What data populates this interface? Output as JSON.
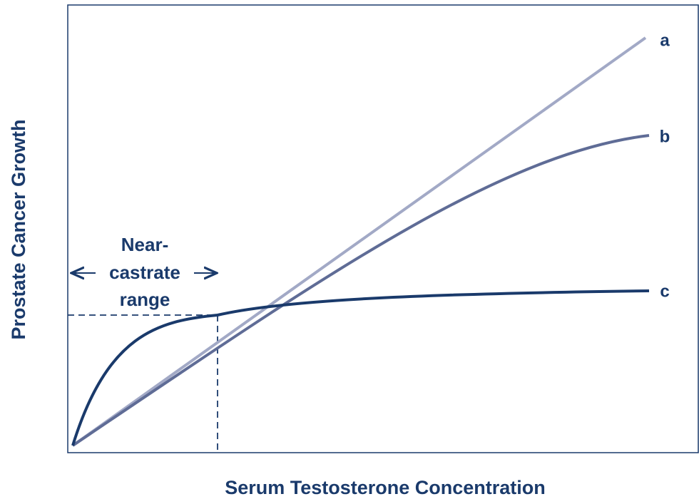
{
  "axes": {
    "x_label": "Serum Testosterone Concentration",
    "y_label": "Prostate Cancer Growth"
  },
  "curves": {
    "a": {
      "label": "a"
    },
    "b": {
      "label": "b"
    },
    "c": {
      "label": "c"
    }
  },
  "annotation": {
    "lines": [
      "Near-",
      "castrate",
      "range"
    ]
  }
}
